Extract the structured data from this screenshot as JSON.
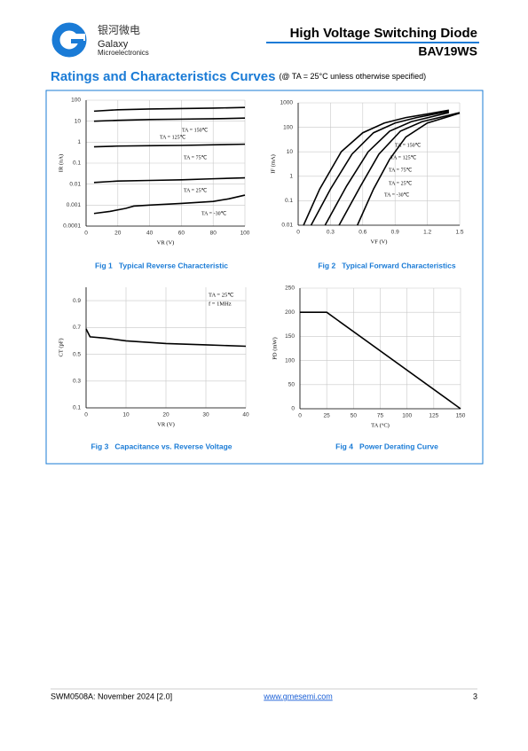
{
  "header": {
    "logo_cn": "银河微电",
    "logo_en1": "Galaxy",
    "logo_en2": "Microelectronics",
    "title": "High Voltage Switching Diode",
    "part": "BAV19WS"
  },
  "section": {
    "title": "Ratings and Characteristics Curves",
    "note": "(@ TA = 25°C unless otherwise specified)"
  },
  "chart_data": [
    {
      "type": "line",
      "title": "Fig 1   Typical Reverse Characteristic",
      "xlabel": "VR (V)",
      "ylabel": "IR (nA)",
      "xlim": [
        0,
        100
      ],
      "xticks": [
        0,
        20,
        40,
        60,
        80,
        100
      ],
      "ylim": [
        0.0001,
        100
      ],
      "yticks": [
        0.0001,
        0.001,
        0.01,
        0.1,
        1,
        10,
        100
      ],
      "log_y": true,
      "grid": true,
      "series": [
        {
          "name": "TA = 150℃",
          "color": "#000000",
          "x": [
            5,
            20,
            40,
            60,
            80,
            100
          ],
          "values": [
            30,
            35,
            38,
            40,
            42,
            45
          ]
        },
        {
          "name": "TA = 125℃",
          "color": "#000000",
          "x": [
            5,
            20,
            40,
            60,
            80,
            100
          ],
          "values": [
            10,
            11,
            12,
            12.5,
            13,
            14
          ]
        },
        {
          "name": "TA = 75℃",
          "color": "#000000",
          "x": [
            5,
            20,
            40,
            60,
            80,
            100
          ],
          "values": [
            0.6,
            0.65,
            0.68,
            0.7,
            0.75,
            0.8
          ]
        },
        {
          "name": "TA = 25℃",
          "color": "#000000",
          "x": [
            5,
            20,
            40,
            60,
            80,
            100
          ],
          "values": [
            0.012,
            0.014,
            0.015,
            0.016,
            0.018,
            0.02
          ]
        },
        {
          "name": "TA = -30℃",
          "color": "#000000",
          "x": [
            5,
            15,
            25,
            30,
            40,
            60,
            80,
            90,
            100
          ],
          "values": [
            0.0004,
            0.0005,
            0.0007,
            0.0009,
            0.001,
            0.0012,
            0.0015,
            0.002,
            0.003
          ]
        }
      ]
    },
    {
      "type": "line",
      "title": "Fig 2   Typical Forward Characteristics",
      "xlabel": "VF (V)",
      "ylabel": "IF (mA)",
      "xlim": [
        0,
        1.5
      ],
      "xticks": [
        0,
        0.3,
        0.6,
        0.9,
        1.2,
        1.5
      ],
      "ylim": [
        0.01,
        1000
      ],
      "yticks": [
        0.01,
        0.1,
        1,
        10,
        100,
        1000
      ],
      "log_y": true,
      "grid": true,
      "series": [
        {
          "name": "TA = 150℃",
          "color": "#000000",
          "x": [
            0.05,
            0.2,
            0.4,
            0.6,
            0.8,
            1.0,
            1.2,
            1.4
          ],
          "values": [
            0.01,
            0.3,
            10,
            60,
            150,
            250,
            350,
            500
          ]
        },
        {
          "name": "TA = 125℃",
          "color": "#000000",
          "x": [
            0.12,
            0.3,
            0.5,
            0.7,
            0.9,
            1.1,
            1.4
          ],
          "values": [
            0.01,
            0.3,
            8,
            60,
            150,
            250,
            450
          ]
        },
        {
          "name": "TA = 75℃",
          "color": "#000000",
          "x": [
            0.25,
            0.45,
            0.65,
            0.85,
            1.05,
            1.4
          ],
          "values": [
            0.01,
            0.4,
            10,
            70,
            170,
            400
          ]
        },
        {
          "name": "TA = 25℃",
          "color": "#000000",
          "x": [
            0.38,
            0.58,
            0.75,
            0.95,
            1.15,
            1.5
          ],
          "values": [
            0.01,
            0.4,
            8,
            70,
            170,
            400
          ]
        },
        {
          "name": "TA = -30℃",
          "color": "#000000",
          "x": [
            0.55,
            0.7,
            0.85,
            1.0,
            1.2,
            1.5
          ],
          "values": [
            0.01,
            0.3,
            5,
            40,
            150,
            380
          ]
        }
      ]
    },
    {
      "type": "line",
      "title": "Fig 3   Capacitance vs. Reverse Voltage",
      "xlabel": "VR (V)",
      "ylabel": "CT (pF)",
      "xlim": [
        0,
        40
      ],
      "xticks": [
        0,
        10,
        20,
        30,
        40
      ],
      "ylim": [
        0.1,
        1
      ],
      "yticks": [
        0.1,
        0.3,
        0.5,
        0.7,
        0.9
      ],
      "log_y": false,
      "grid": true,
      "annotations": [
        "TA = 25℃",
        "f = 1MHz"
      ],
      "series": [
        {
          "name": null,
          "color": "#000000",
          "x": [
            0,
            1,
            5,
            10,
            20,
            30,
            40
          ],
          "values": [
            0.69,
            0.63,
            0.62,
            0.6,
            0.58,
            0.57,
            0.56
          ]
        }
      ]
    },
    {
      "type": "line",
      "title": "Fig 4   Power Derating Curve",
      "xlabel": "TA (°C)",
      "ylabel": "PD (mW)",
      "xlim": [
        0,
        150
      ],
      "xticks": [
        0,
        25,
        50,
        75,
        100,
        125,
        150
      ],
      "ylim": [
        0,
        250
      ],
      "yticks": [
        0,
        50,
        100,
        150,
        200,
        250
      ],
      "log_y": false,
      "grid": true,
      "series": [
        {
          "name": null,
          "color": "#000000",
          "x": [
            0,
            25,
            150
          ],
          "values": [
            200,
            200,
            0
          ]
        }
      ]
    }
  ],
  "footer": {
    "doc": "SWM0508A: November 2024 [2.0]",
    "url": "www.gmesemi.com",
    "page": "3"
  }
}
